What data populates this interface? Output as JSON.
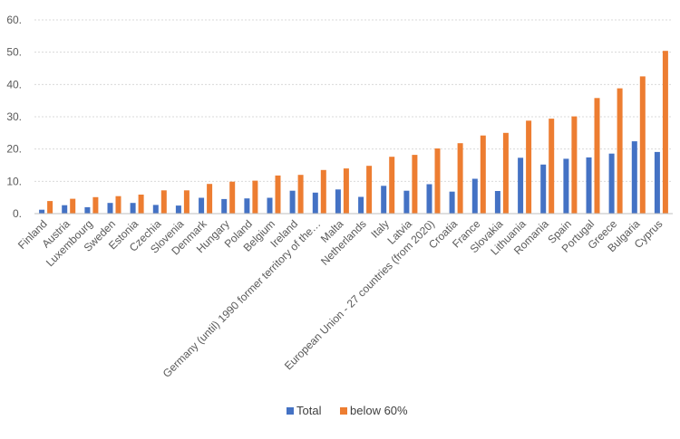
{
  "chart_data": {
    "type": "bar",
    "title": "",
    "xlabel": "",
    "ylabel": "",
    "ylim": [
      0,
      60
    ],
    "yticks": [
      "0.",
      "10.",
      "20.",
      "30.",
      "40.",
      "50.",
      "60."
    ],
    "grid": true,
    "legend_position": "bottom",
    "categories": [
      "Finland",
      "Austria",
      "Luxembourg",
      "Sweden",
      "Estonia",
      "Czechia",
      "Slovenia",
      "Denmark",
      "Hungary",
      "Poland",
      "Belgium",
      "Ireland",
      "Germany (until) 1990 former territory of the…",
      "Malta",
      "Netherlands",
      "Italy",
      "Latvia",
      "European Union - 27 countries (from 2020)",
      "Croatia",
      "France",
      "Slovakia",
      "Lithuania",
      "Romania",
      "Spain",
      "Portugal",
      "Greece",
      "Bulgaria",
      "Cyprus"
    ],
    "series": [
      {
        "name": "Total",
        "color": "#4472C4",
        "values": [
          1.2,
          2.6,
          2.0,
          3.3,
          3.3,
          2.7,
          2.5,
          4.9,
          4.5,
          4.7,
          4.9,
          7.1,
          6.5,
          7.5,
          5.2,
          8.6,
          7.1,
          9.1,
          6.8,
          10.8,
          7.0,
          17.3,
          15.2,
          17.0,
          17.4,
          18.6,
          22.4,
          19.1
        ]
      },
      {
        "name": "below 60%",
        "color": "#ED7D31",
        "values": [
          3.9,
          4.6,
          5.1,
          5.4,
          5.9,
          7.2,
          7.2,
          9.2,
          9.9,
          10.2,
          11.8,
          12.0,
          13.5,
          14.0,
          14.8,
          17.6,
          18.2,
          20.2,
          21.8,
          24.2,
          25.0,
          28.8,
          29.4,
          30.1,
          35.8,
          38.8,
          42.5,
          50.4
        ]
      }
    ]
  }
}
